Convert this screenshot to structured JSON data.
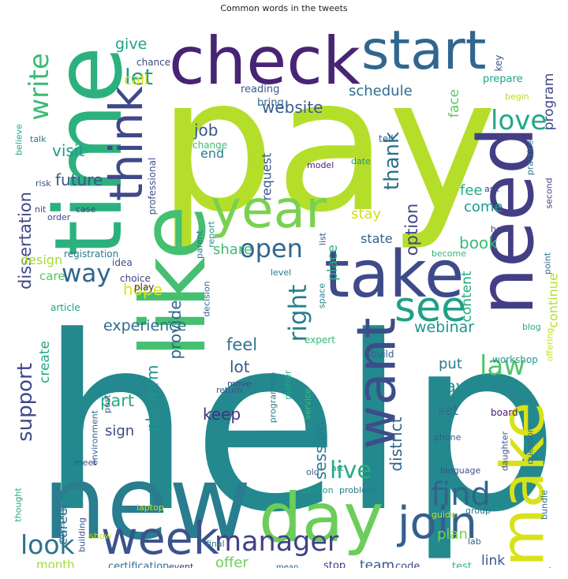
{
  "title": "Common words in the tweets",
  "chart_data": {
    "type": "wordcloud",
    "title": "Common words in the tweets",
    "words": [
      {
        "text": "help",
        "color": "#23898e"
      },
      {
        "text": "pay",
        "color": "#b5de2b"
      },
      {
        "text": "time",
        "color": "#2cb17e"
      },
      {
        "text": "new",
        "color": "#287d8e"
      },
      {
        "text": "like",
        "color": "#45bf70"
      },
      {
        "text": "need",
        "color": "#433e85"
      },
      {
        "text": "check",
        "color": "#482475"
      },
      {
        "text": "start",
        "color": "#31668e"
      },
      {
        "text": "take",
        "color": "#3e4a89"
      },
      {
        "text": "day",
        "color": "#6ccd5a"
      },
      {
        "text": "make",
        "color": "#d8e219"
      },
      {
        "text": "want",
        "color": "#3d4d8a"
      },
      {
        "text": "year",
        "color": "#7ad151"
      },
      {
        "text": "think",
        "color": "#3f4889"
      },
      {
        "text": "week",
        "color": "#3b528b"
      },
      {
        "text": "join",
        "color": "#34608d"
      },
      {
        "text": "see",
        "color": "#1fa088"
      },
      {
        "text": "look",
        "color": "#2d718e"
      },
      {
        "text": "manager",
        "color": "#424186"
      },
      {
        "text": "find",
        "color": "#33638d"
      },
      {
        "text": "law",
        "color": "#52c569"
      },
      {
        "text": "write",
        "color": "#3bbb75"
      },
      {
        "text": "love",
        "color": "#22a884"
      },
      {
        "text": "open",
        "color": "#31678e"
      },
      {
        "text": "way",
        "color": "#32648e"
      },
      {
        "text": "let",
        "color": "#1f9f88"
      },
      {
        "text": "right",
        "color": "#26828e"
      },
      {
        "text": "live",
        "color": "#27ad81"
      },
      {
        "text": "support",
        "color": "#3e4989"
      },
      {
        "text": "thank",
        "color": "#2d708e"
      },
      {
        "text": "option",
        "color": "#414487"
      },
      {
        "text": "dissertation",
        "color": "#3f4788"
      },
      {
        "text": "experience",
        "color": "#2f6c8e"
      },
      {
        "text": "website",
        "color": "#365d8d"
      },
      {
        "text": "visit",
        "color": "#1e9b8a"
      },
      {
        "text": "future",
        "color": "#3a548c"
      },
      {
        "text": "keep",
        "color": "#472f7d"
      },
      {
        "text": "part",
        "color": "#25ac82"
      },
      {
        "text": "feel",
        "color": "#2c728e"
      },
      {
        "text": "webinar",
        "color": "#1f958b"
      },
      {
        "text": "say",
        "color": "#228d8d"
      },
      {
        "text": "district",
        "color": "#33638d"
      },
      {
        "text": "session",
        "color": "#287c8e"
      },
      {
        "text": "platform",
        "color": "#21918c"
      },
      {
        "text": "provide",
        "color": "#31688e"
      },
      {
        "text": "book",
        "color": "#3aba76"
      },
      {
        "text": "lot",
        "color": "#38588c"
      },
      {
        "text": "job",
        "color": "#3a538b"
      },
      {
        "text": "hope",
        "color": "#dde318"
      },
      {
        "text": "career",
        "color": "#2a778e"
      },
      {
        "text": "create",
        "color": "#22a785"
      },
      {
        "text": "place",
        "color": "#2ab07f"
      },
      {
        "text": "program",
        "color": "#3f4788"
      },
      {
        "text": "content",
        "color": "#24aa83"
      },
      {
        "text": "schedule",
        "color": "#2e6d8e"
      },
      {
        "text": "give",
        "color": "#1fa287"
      },
      {
        "text": "call",
        "color": "#e2e418"
      },
      {
        "text": "come",
        "color": "#1e9b8a"
      },
      {
        "text": "stay",
        "color": "#d0e11c"
      },
      {
        "text": "fee",
        "color": "#25ab82"
      },
      {
        "text": "share",
        "color": "#3fbc73"
      },
      {
        "text": "state",
        "color": "#33628d"
      },
      {
        "text": "offer",
        "color": "#6ece58"
      },
      {
        "text": "plan",
        "color": "#77d153"
      },
      {
        "text": "team",
        "color": "#365c8d"
      },
      {
        "text": "link",
        "color": "#3b528b"
      },
      {
        "text": "sign",
        "color": "#3e4a89"
      },
      {
        "text": "put",
        "color": "#287d8e"
      },
      {
        "text": "set",
        "color": "#2c718e"
      },
      {
        "text": "end",
        "color": "#287c8e"
      },
      {
        "text": "request",
        "color": "#39568c"
      },
      {
        "text": "face",
        "color": "#5cc863"
      },
      {
        "text": "continue",
        "color": "#b5de2b"
      },
      {
        "text": "design",
        "color": "#a5db36"
      },
      {
        "text": "care",
        "color": "#52c569"
      },
      {
        "text": "month",
        "color": "#a2da37"
      },
      {
        "text": "certification",
        "color": "#2d708e"
      },
      {
        "text": "stop",
        "color": "#453781"
      },
      {
        "text": "code",
        "color": "#3f4788"
      },
      {
        "text": "test",
        "color": "#32b67a"
      },
      {
        "text": "monday",
        "color": "#35608d"
      },
      {
        "text": "reading",
        "color": "#365c8d"
      },
      {
        "text": "bring",
        "color": "#31688e"
      },
      {
        "text": "prepare",
        "color": "#20a386"
      },
      {
        "text": "chance",
        "color": "#3e4989"
      },
      {
        "text": "key",
        "color": "#3b518b"
      },
      {
        "text": "change",
        "color": "#3fbc73"
      },
      {
        "text": "registration",
        "color": "#2a788e"
      },
      {
        "text": "professional",
        "color": "#3b528b"
      },
      {
        "text": "model",
        "color": "#482173"
      },
      {
        "text": "talk",
        "color": "#2a768e"
      },
      {
        "text": "believe",
        "color": "#21a685"
      },
      {
        "text": "risk",
        "color": "#3c4f8a"
      },
      {
        "text": "case",
        "color": "#424086"
      },
      {
        "text": "nit",
        "color": "#3e4c8a"
      },
      {
        "text": "order",
        "color": "#3f4889"
      },
      {
        "text": "ask",
        "color": "#414487"
      },
      {
        "text": "second",
        "color": "#414487"
      },
      {
        "text": "hour",
        "color": "#3e4989"
      },
      {
        "text": "parent",
        "color": "#2c718e"
      },
      {
        "text": "report",
        "color": "#21908d"
      },
      {
        "text": "list",
        "color": "#3a538b"
      },
      {
        "text": "level",
        "color": "#2a788e"
      },
      {
        "text": "become",
        "color": "#2fb47c"
      },
      {
        "text": "choice",
        "color": "#433e85"
      },
      {
        "text": "idea",
        "color": "#3b528b"
      },
      {
        "text": "play",
        "color": "#472a7a"
      },
      {
        "text": "decision",
        "color": "#31688e"
      },
      {
        "text": "space",
        "color": "#25848e"
      },
      {
        "text": "article",
        "color": "#20a486"
      },
      {
        "text": "tell",
        "color": "#355f8d"
      },
      {
        "text": "date",
        "color": "#21918c"
      },
      {
        "text": "begin",
        "color": "#b8de29"
      },
      {
        "text": "practice",
        "color": "#2c728e"
      },
      {
        "text": "point",
        "color": "#2d708e"
      },
      {
        "text": "blog",
        "color": "#22a884"
      },
      {
        "text": "offering",
        "color": "#c2df23"
      },
      {
        "text": "expert",
        "color": "#35b779"
      },
      {
        "text": "build",
        "color": "#34618d"
      },
      {
        "text": "workshop",
        "color": "#1f988b"
      },
      {
        "text": "move",
        "color": "#3e4989"
      },
      {
        "text": "return",
        "color": "#3b528b"
      },
      {
        "text": "programme",
        "color": "#2a788e"
      },
      {
        "text": "matter",
        "color": "#22a785"
      },
      {
        "text": "service",
        "color": "#3fbc73"
      },
      {
        "text": "post",
        "color": "#3b528b"
      },
      {
        "text": "environment",
        "color": "#34618d"
      },
      {
        "text": "board",
        "color": "#481b6d"
      },
      {
        "text": "question",
        "color": "#2e6e8e"
      },
      {
        "text": "daughter",
        "color": "#3b528b"
      },
      {
        "text": "bundle",
        "color": "#2c718e"
      },
      {
        "text": "meet",
        "color": "#3b528b"
      },
      {
        "text": "phone",
        "color": "#355f8d"
      },
      {
        "text": "art",
        "color": "#1f968b"
      },
      {
        "text": "old",
        "color": "#32648e"
      },
      {
        "text": "section",
        "color": "#1f9e89"
      },
      {
        "text": "problem",
        "color": "#2a788e"
      },
      {
        "text": "language",
        "color": "#3b528b"
      },
      {
        "text": "thought",
        "color": "#22a785"
      },
      {
        "text": "meeting",
        "color": "#2d708e"
      },
      {
        "text": "building",
        "color": "#38588c"
      },
      {
        "text": "show",
        "color": "#bade28"
      },
      {
        "text": "laptop",
        "color": "#c8e020"
      },
      {
        "text": "guide",
        "color": "#c0df25"
      },
      {
        "text": "group",
        "color": "#2a788e"
      },
      {
        "text": "final",
        "color": "#2c718e"
      },
      {
        "text": "lab",
        "color": "#34618d"
      },
      {
        "text": "event",
        "color": "#46307e"
      },
      {
        "text": "mean",
        "color": "#32648e"
      }
    ]
  }
}
